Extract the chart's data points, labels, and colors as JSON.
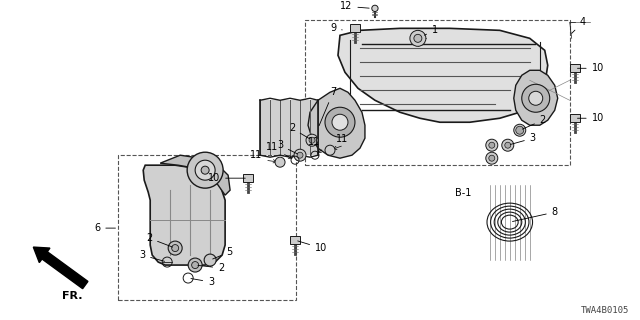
{
  "bg_color": "#ffffff",
  "diagram_id": "TWA4B0105",
  "line_color": "#1a1a1a",
  "gray_fill": "#d8d8d8",
  "light_fill": "#eeeeee"
}
